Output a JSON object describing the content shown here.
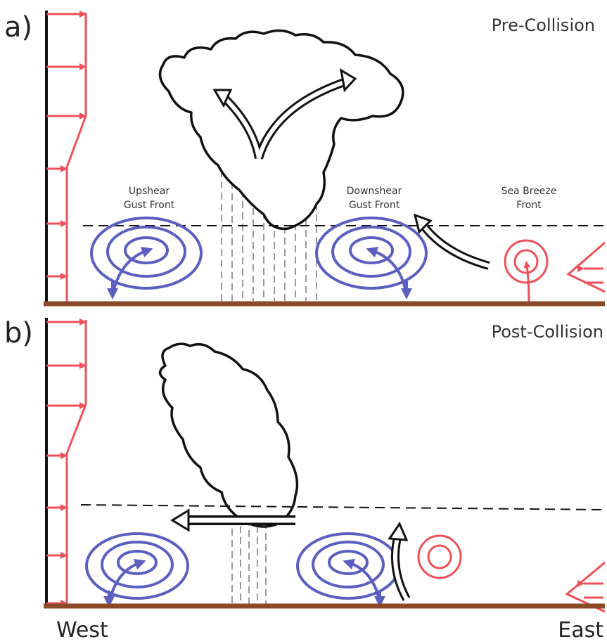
{
  "panels": [
    {
      "label": "a)",
      "title": "Pre-Collision",
      "features": [
        {
          "lines": [
            "Upshear",
            "Gust Front"
          ]
        },
        {
          "lines": [
            "Downshear",
            "Gust Front"
          ]
        },
        {
          "lines": [
            "Sea Breeze",
            "Front"
          ]
        }
      ]
    },
    {
      "label": "b)",
      "title": "Post-Collision"
    }
  ],
  "axis": {
    "west": "West",
    "east": "East"
  }
}
